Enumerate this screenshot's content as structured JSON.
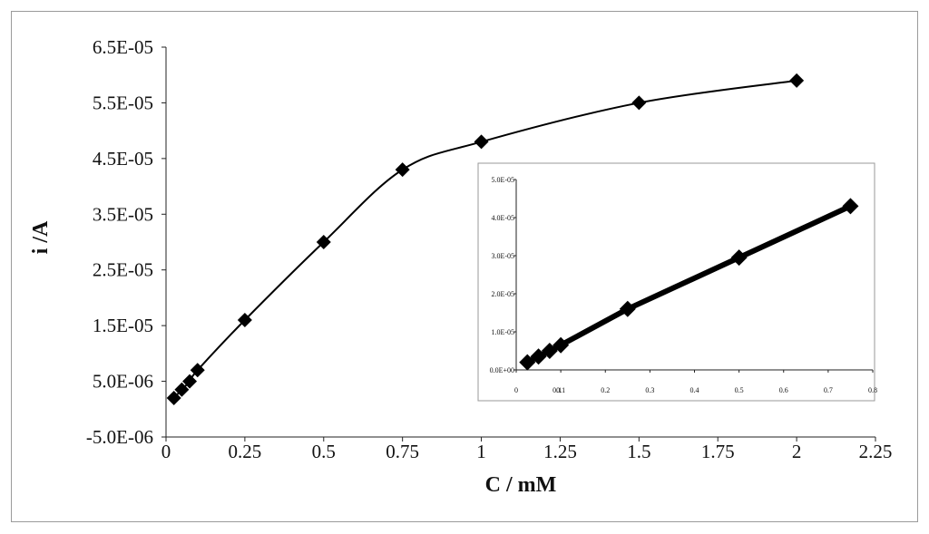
{
  "chart_data": [
    {
      "type": "line",
      "xlabel": "C / mM",
      "ylabel": "i /A",
      "xlim": [
        0,
        2.25
      ],
      "ylim": [
        -5e-06,
        6.5e-05
      ],
      "x_ticks": [
        "0",
        "0.25",
        "0.5",
        "0.75",
        "1",
        "1.25",
        "1.5",
        "1.75",
        "2",
        "2.25"
      ],
      "x_tick_values": [
        0,
        0.25,
        0.5,
        0.75,
        1,
        1.25,
        1.5,
        1.75,
        2,
        2.25
      ],
      "y_ticks": [
        "-5.0E-06",
        "5.0E-06",
        "1.5E-05",
        "2.5E-05",
        "3.5E-05",
        "4.5E-05",
        "5.5E-05",
        "6.5E-05"
      ],
      "y_tick_values": [
        -5e-06,
        5e-06,
        1.5e-05,
        2.5e-05,
        3.5e-05,
        4.5e-05,
        5.5e-05,
        6.5e-05
      ],
      "series": [
        {
          "marker": "diamond",
          "color": "#000000",
          "x": [
            0.025,
            0.05,
            0.075,
            0.1,
            0.25,
            0.5,
            0.75,
            1.0,
            1.5,
            2.0
          ],
          "y": [
            2e-06,
            3.5e-06,
            5e-06,
            7e-06,
            1.6e-05,
            3e-05,
            4.3e-05,
            4.8e-05,
            5.5e-05,
            5.9e-05
          ]
        }
      ],
      "grid": false,
      "legend": false
    },
    {
      "type": "line",
      "inset": true,
      "xlim": [
        0,
        0.8
      ],
      "ylim": [
        0,
        5e-05
      ],
      "x_ticks": [
        "0",
        "0.1",
        "0.2",
        "0.3",
        "0.4",
        "0.5",
        "0.6",
        "0.7",
        "0.8"
      ],
      "x_tick_values": [
        0,
        0.1,
        0.2,
        0.3,
        0.4,
        0.5,
        0.6,
        0.7,
        0.8
      ],
      "y_ticks": [
        "0.0E+00",
        "1.0E-05",
        "2.0E-05",
        "3.0E-05",
        "4.0E-05",
        "5.0E-05"
      ],
      "y_tick_values": [
        0,
        1e-05,
        2e-05,
        3e-05,
        4e-05,
        5e-05
      ],
      "extra_x_tick_labels": [
        "0.1"
      ],
      "series": [
        {
          "marker": "diamond",
          "color": "#000000",
          "x": [
            0.025,
            0.05,
            0.075,
            0.1,
            0.25,
            0.5,
            0.75
          ],
          "y": [
            2e-06,
            3.5e-06,
            5e-06,
            6.5e-06,
            1.6e-05,
            2.95e-05,
            4.3e-05
          ]
        }
      ],
      "grid": false,
      "legend": false
    }
  ]
}
